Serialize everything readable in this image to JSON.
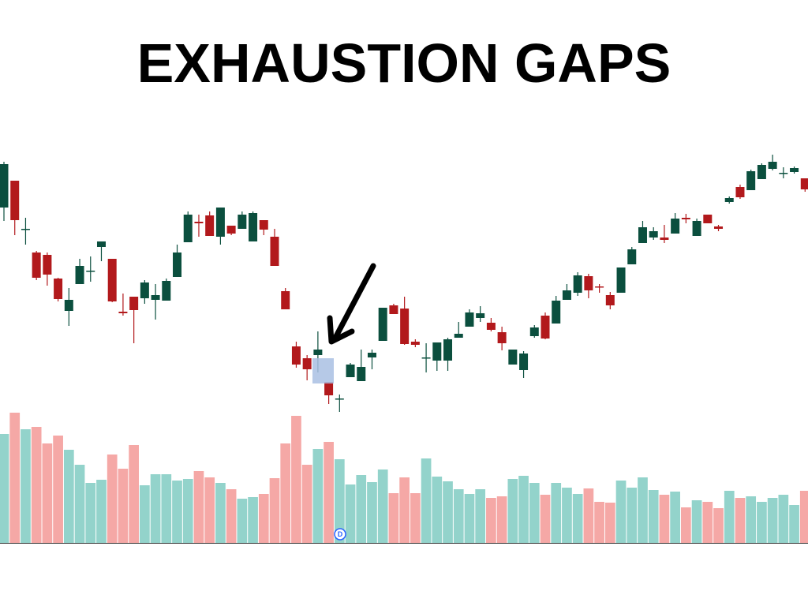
{
  "chart_data": {
    "type": "candlestick",
    "title": "EXHAUSTION GAPS",
    "marker_label": "D",
    "up_color": "#0b4f3e",
    "down_color": "#b2191c",
    "volume_up_color": "#93d3cb",
    "volume_down_color": "#f5a8a6",
    "ylim": [
      150,
      510
    ],
    "volume_ylim": [
      0,
      180
    ],
    "open": [
      437,
      471,
      409,
      380,
      377,
      347,
      306,
      340,
      356,
      387,
      372,
      305,
      324,
      322,
      320,
      319,
      349,
      393,
      419,
      427,
      400,
      414,
      410,
      394,
      421,
      400,
      331,
      261,
      246,
      250,
      216,
      194,
      222,
      217,
      247,
      268,
      313,
      309,
      267,
      246,
      243,
      243,
      272,
      286,
      297,
      291,
      279,
      238,
      231,
      274,
      300,
      290,
      320,
      329,
      350,
      337,
      326,
      329,
      365,
      392,
      399,
      399,
      404,
      424,
      401,
      428,
      413,
      444,
      463,
      459,
      473,
      486,
      480,
      482,
      474
    ],
    "high": [
      495,
      471,
      424,
      382,
      380,
      348,
      335,
      372,
      375,
      394,
      372,
      328,
      324,
      345,
      340,
      347,
      390,
      432,
      428,
      432,
      437,
      414,
      432,
      432,
      421,
      410,
      335,
      267,
      250,
      280,
      216,
      200,
      240,
      257,
      257,
      310,
      315,
      324,
      270,
      265,
      266,
      272,
      292,
      308,
      312,
      297,
      286,
      257,
      255,
      288,
      304,
      325,
      340,
      355,
      353,
      340,
      330,
      361,
      387,
      420,
      412,
      415,
      430,
      429,
      423,
      428,
      415,
      451,
      466,
      485,
      493,
      504,
      488,
      489,
      474
    ],
    "low": [
      420,
      402,
      390,
      345,
      338,
      318,
      287,
      340,
      343,
      369,
      317,
      300,
      265,
      315,
      295,
      319,
      349,
      393,
      400,
      401,
      390,
      402,
      410,
      394,
      402,
      363,
      308,
      234,
      218,
      228,
      188,
      178,
      222,
      217,
      232,
      268,
      302,
      263,
      260,
      228,
      230,
      230,
      272,
      286,
      292,
      280,
      256,
      238,
      221,
      272,
      270,
      290,
      320,
      325,
      322,
      329,
      308,
      329,
      365,
      392,
      396,
      392,
      404,
      417,
      401,
      417,
      407,
      442,
      448,
      459,
      473,
      484,
      474,
      480,
      457
    ],
    "close": [
      492,
      421,
      410,
      348,
      352,
      321,
      320,
      363,
      357,
      394,
      318,
      303,
      307,
      342,
      326,
      344,
      380,
      428,
      417,
      401,
      437,
      404,
      428,
      430,
      409,
      363,
      308,
      238,
      232,
      257,
      199,
      195,
      238,
      235,
      253,
      310,
      302,
      264,
      263,
      247,
      266,
      270,
      277,
      304,
      303,
      282,
      265,
      257,
      252,
      285,
      271,
      319,
      332,
      351,
      332,
      336,
      313,
      361,
      384,
      412,
      407,
      396,
      423,
      422,
      420,
      417,
      410,
      449,
      450,
      483,
      491,
      495,
      481,
      487,
      460
    ],
    "volume": [
      138,
      165,
      144,
      147,
      126,
      136,
      118,
      99,
      76,
      80,
      112,
      94,
      124,
      73,
      87,
      87,
      79,
      81,
      91,
      83,
      76,
      68,
      56,
      58,
      62,
      82,
      126,
      161,
      99,
      119,
      128,
      106,
      74,
      86,
      77,
      93,
      63,
      83,
      63,
      107,
      84,
      78,
      68,
      62,
      68,
      57,
      59,
      81,
      85,
      76,
      61,
      76,
      70,
      62,
      69,
      52,
      51,
      79,
      70,
      83,
      67,
      61,
      65,
      45,
      54,
      52,
      44,
      66,
      57,
      59,
      52,
      57,
      61,
      48,
      66
    ]
  }
}
